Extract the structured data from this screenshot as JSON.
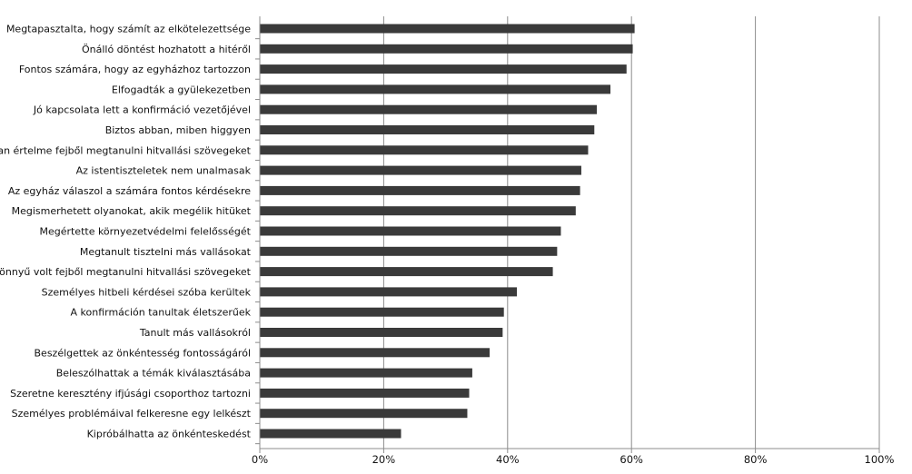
{
  "chart_data": {
    "type": "bar",
    "orientation": "horizontal",
    "title": "",
    "xlabel": "",
    "ylabel": "",
    "xlim": [
      0,
      100
    ],
    "x_ticks": [
      "0%",
      "20%",
      "40%",
      "60%",
      "80%",
      "100%"
    ],
    "grid": true,
    "legend": "none",
    "bar_color": "#3a3a3a",
    "categories": [
      "Megtapasztalta, hogy számít az elkötelezettsége",
      "Önálló döntést hozhatott a hitéről",
      "Fontos számára, hogy az egyházhoz tartozzon",
      "Elfogadták a gyülekezetben",
      "Jó kapcsolata lett a konfirmáció vezetőjével",
      "Biztos abban, miben higgyen",
      "Van értelme fejből megtanulni hitvallási szövegeket",
      "Az istentiszteletek nem unalmasak",
      "Az egyház válaszol a számára fontos kérdésekre",
      "Megismerhetett olyanokat, akik megélik hitüket",
      "Megértette környezetvédelmi felelősségét",
      "Megtanult tisztelni más vallásokat",
      "Könnyű volt fejből megtanulni hitvallási szövegeket",
      "Személyes hitbeli kérdései szóba kerültek",
      "A konfirmáción tanultak életszerűek",
      "Tanult más vallásokról",
      "Beszélgettek az önkéntesség fontosságáról",
      "Beleszólhattak a témák kiválasztásába",
      "Szeretne keresztény ifjúsági csoporthoz tartozni",
      "Személyes problémáival felkeresne egy lelkészt",
      "Kipróbálhatta az önkénteskedést"
    ],
    "values": [
      60.5,
      60.2,
      59.2,
      56.6,
      54.4,
      54.0,
      53.0,
      51.9,
      51.7,
      51.0,
      48.6,
      48.0,
      47.3,
      41.5,
      39.4,
      39.2,
      37.1,
      34.3,
      33.8,
      33.5,
      22.8
    ]
  }
}
